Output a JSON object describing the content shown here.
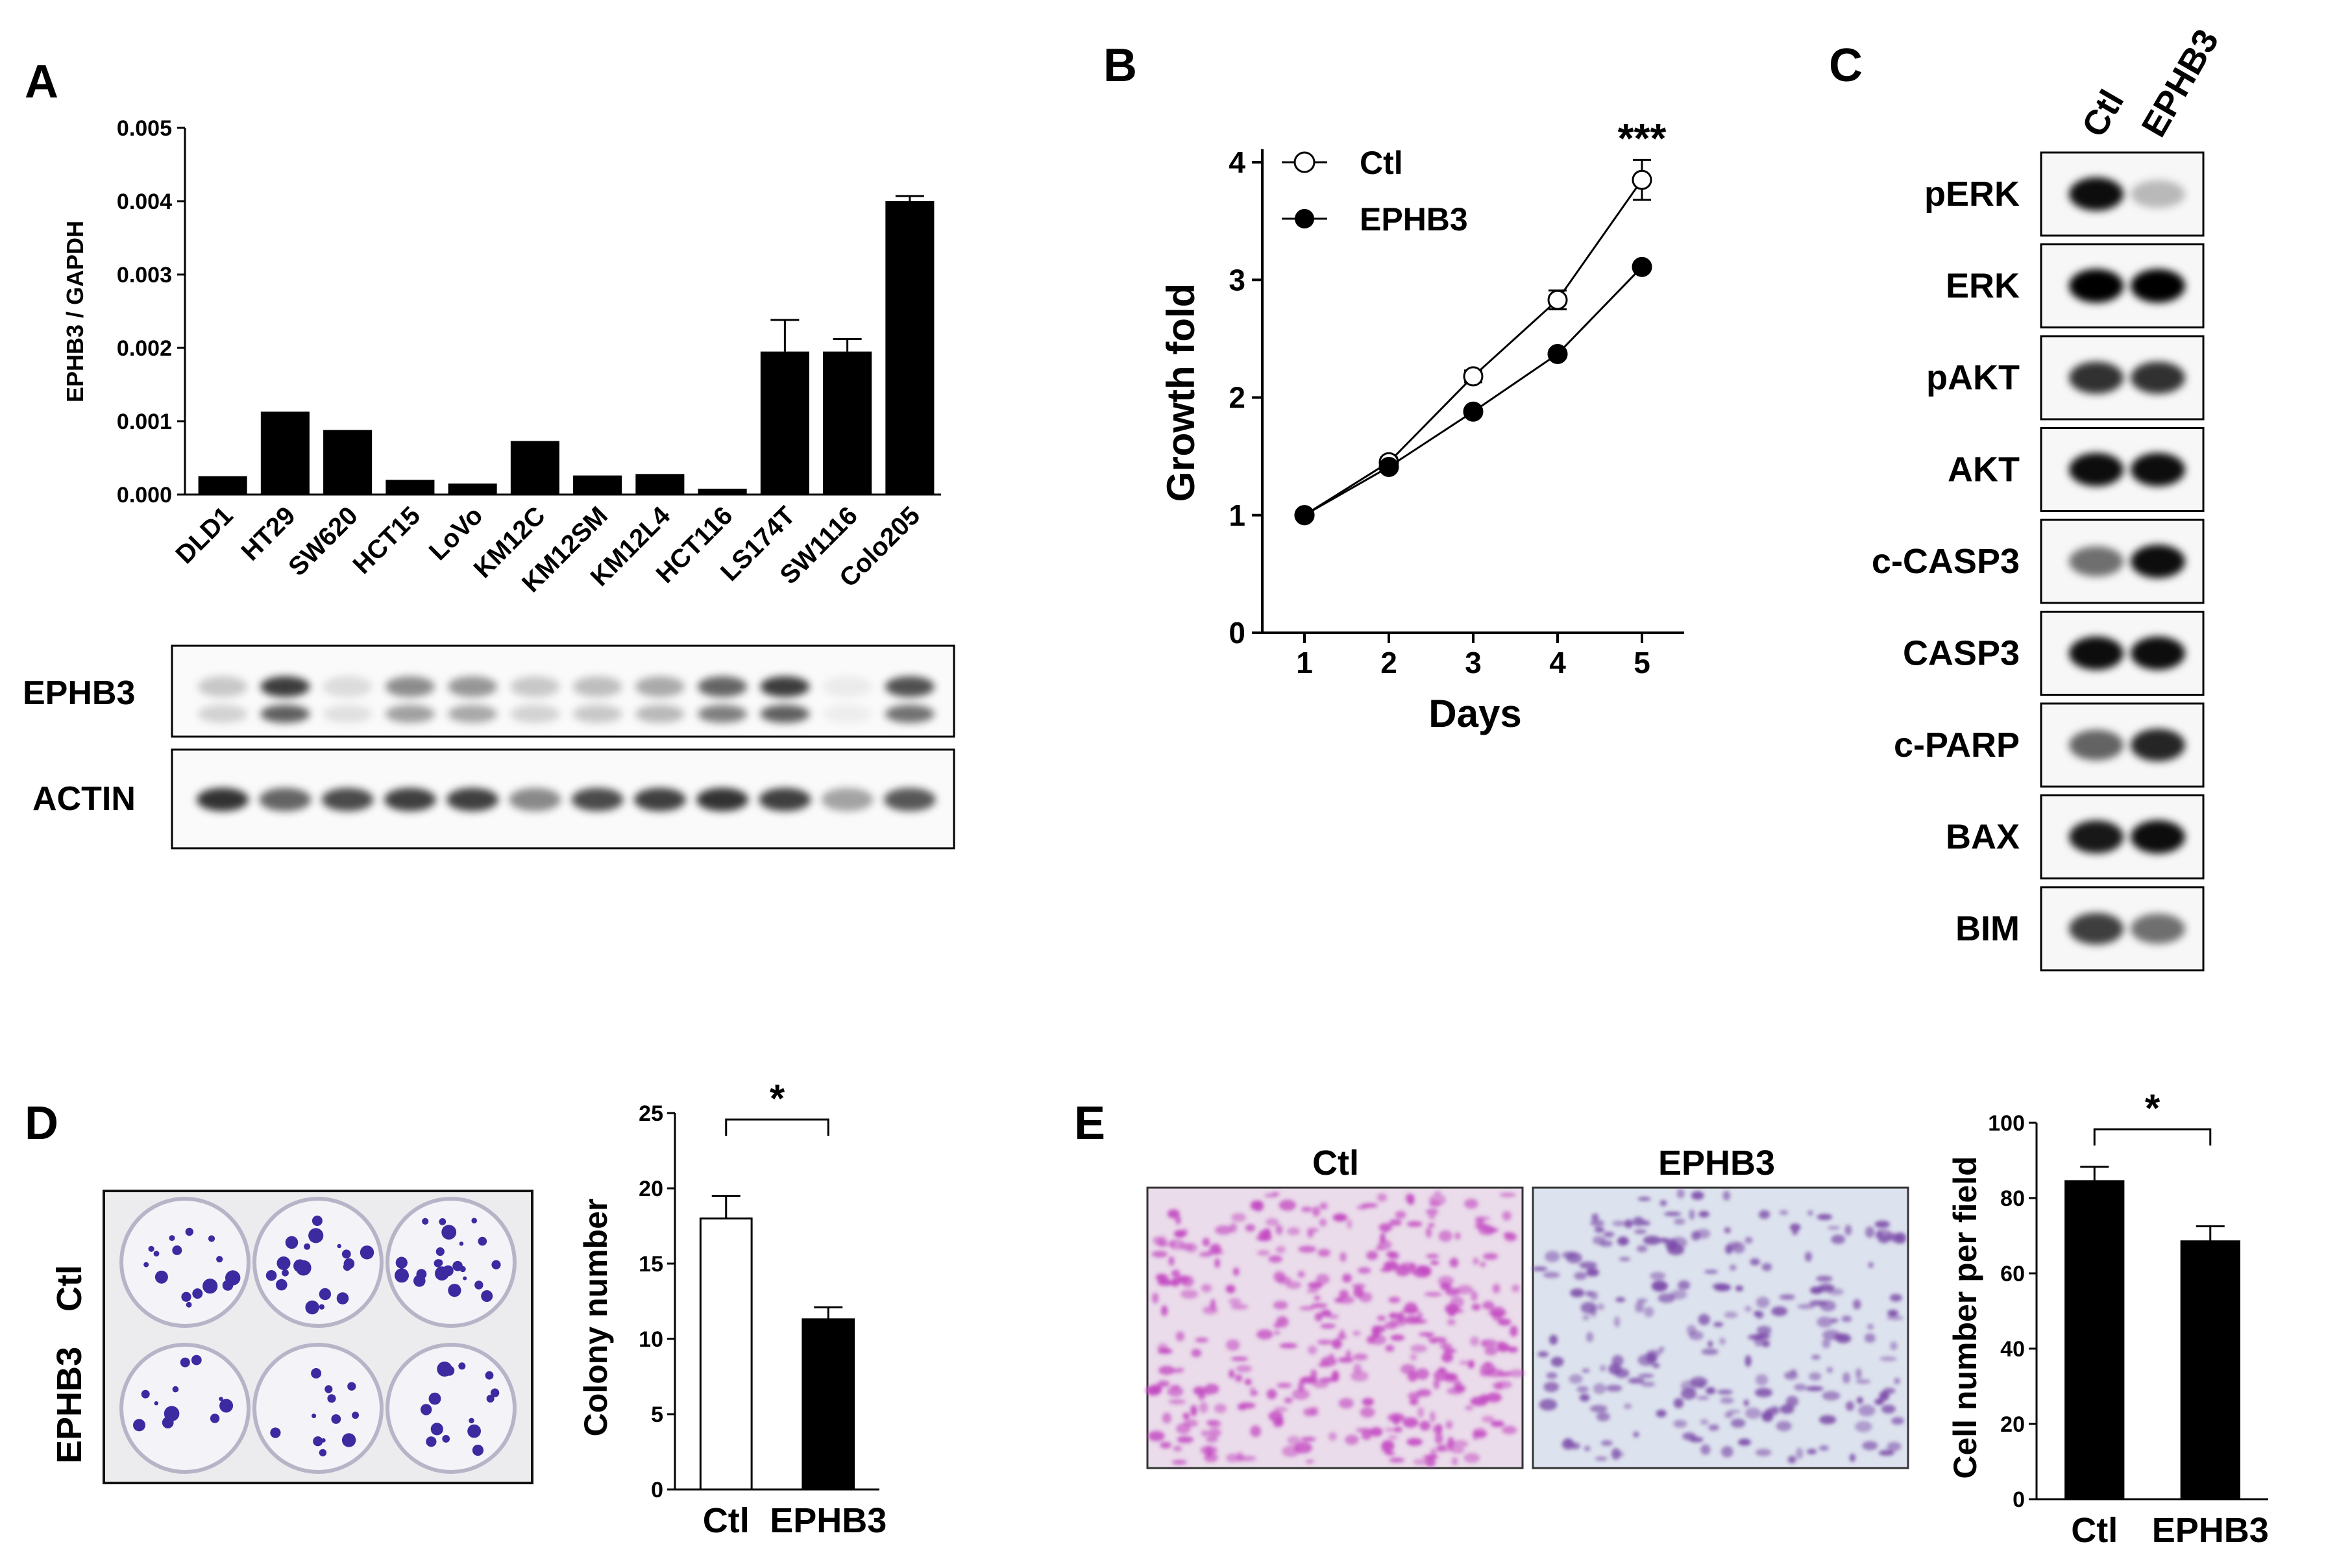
{
  "panels": {
    "A": {
      "letter": "A"
    },
    "B": {
      "letter": "B"
    },
    "C": {
      "letter": "C"
    },
    "D": {
      "letter": "D"
    },
    "E": {
      "letter": "E"
    }
  },
  "chart_data": [
    {
      "panel": "A",
      "type": "bar",
      "ylabel": "EPHB3 / GAPDH",
      "xlabel": "",
      "ylim": [
        0,
        0.005
      ],
      "yticks": [
        "0.000",
        "0.001",
        "0.002",
        "0.003",
        "0.004",
        "0.005"
      ],
      "categories": [
        "DLD1",
        "HT29",
        "SW620",
        "HCT15",
        "LoVo",
        "KM12C",
        "KM12SM",
        "KM12L4",
        "HCT116",
        "LS174T",
        "SW1116",
        "Colo205"
      ],
      "values": [
        0.00025,
        0.00113,
        0.00088,
        0.0002,
        0.00015,
        0.00073,
        0.00026,
        0.00028,
        8e-05,
        0.00195,
        0.00195,
        0.004
      ],
      "errors": [
        0,
        0,
        0,
        0,
        0,
        0,
        0,
        0,
        0,
        0.00043,
        0.00017,
        7e-05
      ],
      "bar_color": "#000000"
    },
    {
      "panel": "B",
      "type": "line",
      "xlabel": "Days",
      "ylabel": "Growth fold",
      "ylim": [
        0,
        4
      ],
      "xlim": [
        0.5,
        5.5
      ],
      "x": [
        1,
        2,
        3,
        4,
        5
      ],
      "yticks": [
        "0",
        "1",
        "2",
        "3",
        "4"
      ],
      "series": [
        {
          "name": "Ctl",
          "values": [
            1.0,
            1.45,
            2.18,
            2.83,
            3.85
          ],
          "errors": [
            0,
            0.04,
            0.05,
            0.08,
            0.17
          ],
          "marker": "open"
        },
        {
          "name": "EPHB3",
          "values": [
            1.0,
            1.41,
            1.88,
            2.37,
            3.11
          ],
          "errors": [
            0,
            0,
            0,
            0,
            0
          ],
          "marker": "filled"
        }
      ],
      "annotation": "***"
    },
    {
      "panel": "D",
      "type": "bar",
      "ylabel": "Colony number",
      "xlabel": "",
      "ylim": [
        0,
        25
      ],
      "yticks": [
        "0",
        "5",
        "10",
        "15",
        "20",
        "25"
      ],
      "categories": [
        "Ctl",
        "EPHB3"
      ],
      "values": [
        18,
        11.3
      ],
      "errors": [
        1.5,
        0.8
      ],
      "fills": [
        "#ffffff",
        "#000000"
      ],
      "significance": "*"
    },
    {
      "panel": "E",
      "type": "bar",
      "ylabel": "Cell number per field",
      "xlabel": "",
      "ylim": [
        0,
        100
      ],
      "yticks": [
        "0",
        "20",
        "40",
        "60",
        "80",
        "100"
      ],
      "categories": [
        "Ctl",
        "EPHB3"
      ],
      "values": [
        84.5,
        68.5
      ],
      "errors": [
        3.8,
        4
      ],
      "fills": [
        "#000000",
        "#000000"
      ],
      "significance": "*"
    }
  ],
  "blots": {
    "A": {
      "rows": [
        "EPHB3",
        "ACTIN"
      ]
    },
    "C": {
      "columns": [
        "Ctl",
        "EPHB3"
      ],
      "rows": [
        "pERK",
        "ERK",
        "pAKT",
        "AKT",
        "c-CASP3",
        "CASP3",
        "c-PARP",
        "BAX",
        "BIM"
      ]
    }
  },
  "images": {
    "D": {
      "row_labels": [
        "Ctl",
        "EPHB3"
      ]
    },
    "E": {
      "column_labels": [
        "Ctl",
        "EPHB3"
      ]
    }
  },
  "colors": {
    "crystal_violet": "#3b2aa0",
    "stain_pink": "#c44ac2",
    "stain_purple": "#7b4aa8"
  }
}
